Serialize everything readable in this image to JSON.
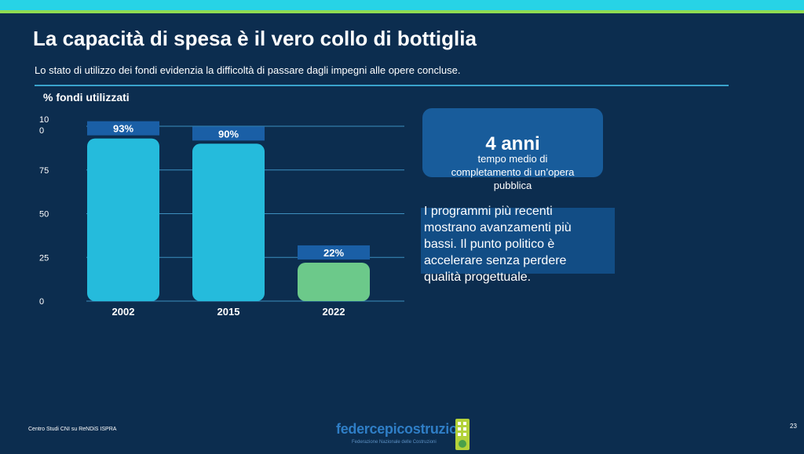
{
  "slide": {
    "title": "La capacità di spesa è il vero collo di bottiglia",
    "subtitle": "Lo stato di utilizzo dei fondi evidenzia la difficoltà di passare dagli impegni alle opere concluse.",
    "chart_caption": "% fondi utilizzati",
    "kpi": {
      "value": "4 anni",
      "description": "tempo medio di completamento di un’opera pubblica"
    },
    "note": "I programmi più recenti mostrano avanzamenti più bassi. Il punto politico è accelerare senza perdere qualità progettuale.",
    "footer_source": "Centro Studi CNI su ReNDiS ISPRA",
    "logo_text": "federcepicostruzioni",
    "logo_subtext": "Federazione Nazionale delle Costruzioni",
    "page_number": "23"
  },
  "colors": {
    "background": "#0c2d4f",
    "bar_cyan": "#25bbdc",
    "bar_green": "#6cc98a",
    "label_box": "#1a5fa6",
    "grid": "#3d8fbf"
  },
  "chart_data": {
    "type": "bar",
    "categories": [
      "2002",
      "2015",
      "2022"
    ],
    "values": [
      93,
      90,
      22
    ],
    "data_labels": [
      "93%",
      "90%",
      "22%"
    ],
    "bar_colors": [
      "#25bbdc",
      "#25bbdc",
      "#6cc98a"
    ],
    "ylabel": "% fondi utilizzati",
    "yticks": [
      "0",
      "25",
      "50",
      "75",
      "10\n0"
    ],
    "ytick_values": [
      0,
      25,
      50,
      75,
      100
    ],
    "ylim": [
      0,
      100
    ],
    "grid": true,
    "legend": "none"
  }
}
